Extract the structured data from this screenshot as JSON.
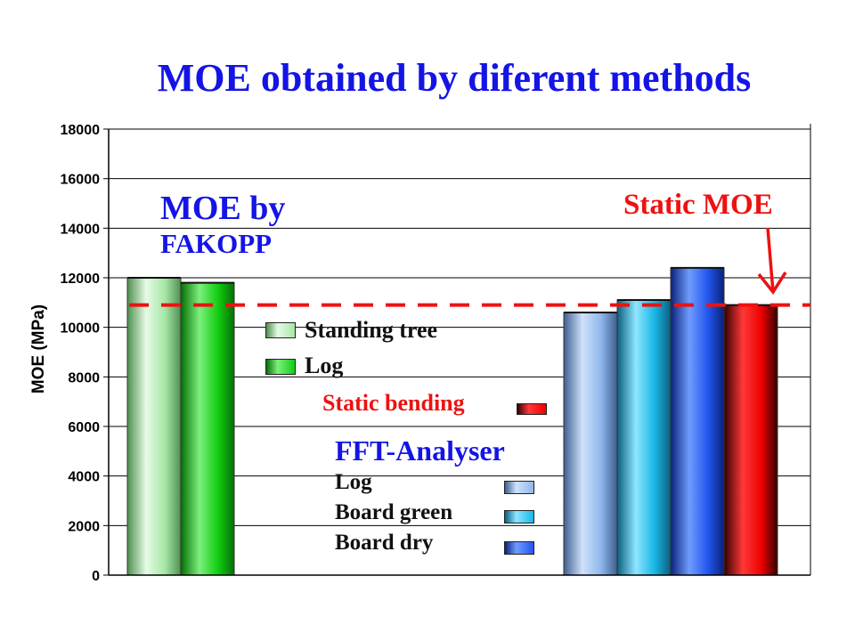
{
  "title": "MOE obtained by diferent methods",
  "chart_data": {
    "type": "bar",
    "ylabel": "MOE (MPa)",
    "xlabel": "",
    "ylim": [
      0,
      18000
    ],
    "yticks": [
      "0",
      "2000",
      "4000",
      "6000",
      "8000",
      "10000",
      "12000",
      "14000",
      "16000",
      "18000"
    ],
    "grid": true,
    "groups": [
      {
        "annotation": [
          "MOE by",
          "FAKOPP"
        ],
        "bars": [
          {
            "name": "Standing tree",
            "value": 12000,
            "color_top": "#e6fbe6",
            "color_mid": "#a7e7a7",
            "color_dark": "#4f8f4f"
          },
          {
            "name": "Log",
            "value": 11800,
            "color_top": "#7cf07c",
            "color_mid": "#11cc11",
            "color_dark": "#066e06"
          }
        ]
      },
      {
        "annotation": [
          "Static MOE"
        ],
        "bars": [
          {
            "name": "Log",
            "value": 10600,
            "color_top": "#cfe2fb",
            "color_mid": "#8fb6ea",
            "color_dark": "#3f5f8f"
          },
          {
            "name": "Board green",
            "value": 11100,
            "color_top": "#8fe6ff",
            "color_mid": "#19b6e6",
            "color_dark": "#0a5f80"
          },
          {
            "name": "Board dry",
            "value": 12400,
            "color_top": "#6f9cff",
            "color_mid": "#2255ee",
            "color_dark": "#0a2277"
          },
          {
            "name": "Static bending",
            "value": 10900,
            "color_top": "#ff3838",
            "color_mid": "#ee0000",
            "color_dark": "#330000"
          }
        ]
      }
    ],
    "reference_line": {
      "value": 10900,
      "color": "#ee1111",
      "style": "dashed"
    },
    "legend": {
      "placement": "center",
      "fakopp_entries": [
        "Standing tree",
        "Log"
      ],
      "static_entry": "Static bending",
      "fft_heading": "FFT-Analyser",
      "fft_entries": [
        "Log",
        "Board green",
        "Board dry"
      ]
    }
  },
  "colors": {
    "title": "#1414e6",
    "static": "#ee1111",
    "ink": "#111111"
  }
}
